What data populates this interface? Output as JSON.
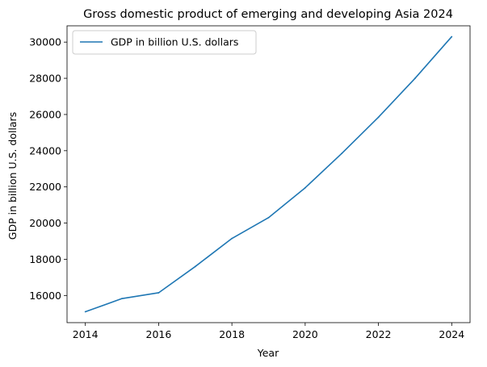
{
  "chart_data": {
    "type": "line",
    "title": "Gross domestic product of emerging and developing Asia 2024",
    "xlabel": "Year",
    "ylabel": "GDP in billion U.S. dollars",
    "xlim": [
      2013.5,
      2024.5
    ],
    "ylim": [
      14500,
      30900
    ],
    "x_ticks": [
      2014,
      2016,
      2018,
      2020,
      2022,
      2024
    ],
    "y_ticks": [
      16000,
      18000,
      20000,
      22000,
      24000,
      26000,
      28000,
      30000
    ],
    "grid": false,
    "legend_position": "upper-left",
    "series": [
      {
        "name": "GDP in billion U.S. dollars",
        "color": "#1f77b4",
        "x": [
          2014,
          2015,
          2016,
          2017,
          2018,
          2019,
          2020,
          2021,
          2022,
          2023,
          2024
        ],
        "y": [
          15100,
          15830,
          16150,
          17600,
          19150,
          20300,
          21950,
          23850,
          25850,
          28000,
          30300
        ]
      }
    ]
  }
}
